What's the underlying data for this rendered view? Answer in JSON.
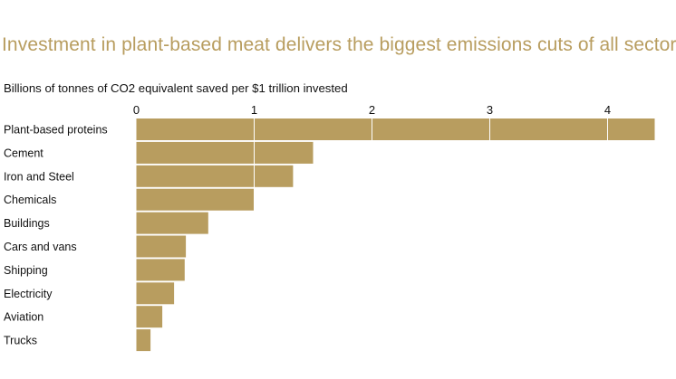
{
  "colors": {
    "bar": "#b89d5f",
    "title": "#b89d5f",
    "gridline": "#ffffff",
    "text": "#111111"
  },
  "chart_data": {
    "type": "bar",
    "orientation": "horizontal",
    "title": "Investment in plant-based meat delivers the biggest emissions cuts of all sectors",
    "subtitle": "Billions of tonnes of CO2 equivalent saved per $1 trillion invested",
    "xlabel": "",
    "ylabel": "",
    "categories": [
      "Plant-based proteins",
      "Cement",
      "Iron and Steel",
      "Chemicals",
      "Buildings",
      "Cars and vans",
      "Shipping",
      "Electricity",
      "Aviation",
      "Trucks"
    ],
    "values": [
      4.4,
      1.5,
      1.33,
      1.0,
      0.61,
      0.42,
      0.41,
      0.32,
      0.22,
      0.12
    ],
    "xlim": [
      0,
      4.4
    ],
    "xticks": [
      0,
      1,
      2,
      3,
      4
    ],
    "axis_position": "top",
    "grid": true,
    "legend": "none"
  }
}
